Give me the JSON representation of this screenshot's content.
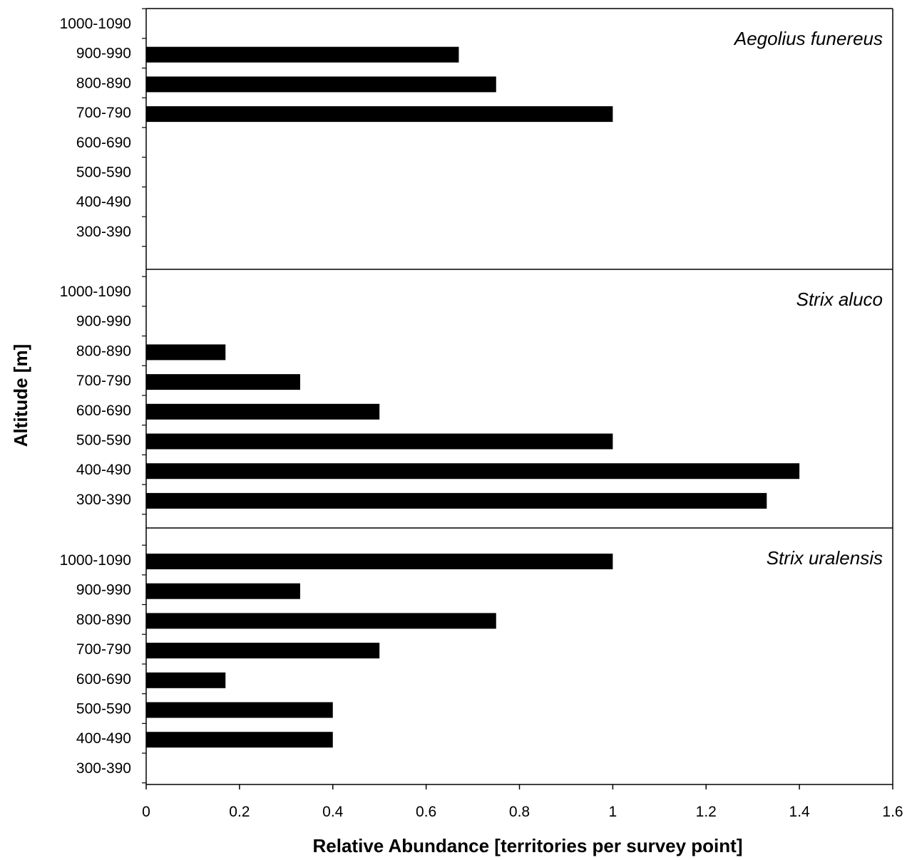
{
  "chart_data": {
    "type": "bar",
    "orientation": "horizontal",
    "xlabel": "Relative Abundance [territories per survey point]",
    "ylabel": "Altitude [m]",
    "xlim": [
      0,
      1.6
    ],
    "xticks": [
      "0",
      "0.2",
      "0.4",
      "0.6",
      "0.8",
      "1",
      "1.2",
      "1.4",
      "1.6"
    ],
    "categories": [
      "1000-1090",
      "900-990",
      "800-890",
      "700-790",
      "600-690",
      "500-590",
      "400-490",
      "300-390"
    ],
    "grid": false,
    "legend": "none",
    "bar_color": "#000000",
    "panels": [
      {
        "title": "Aegolius funereus",
        "values": [
          0,
          0.67,
          0.75,
          1.0,
          0,
          0,
          0,
          0
        ]
      },
      {
        "title": "Strix aluco",
        "values": [
          0,
          0,
          0.17,
          0.33,
          0.5,
          1.0,
          1.4,
          1.33
        ]
      },
      {
        "title": "Strix uralensis",
        "values": [
          1.0,
          0.33,
          0.75,
          0.5,
          0.17,
          0.4,
          0.4,
          0
        ]
      }
    ]
  }
}
